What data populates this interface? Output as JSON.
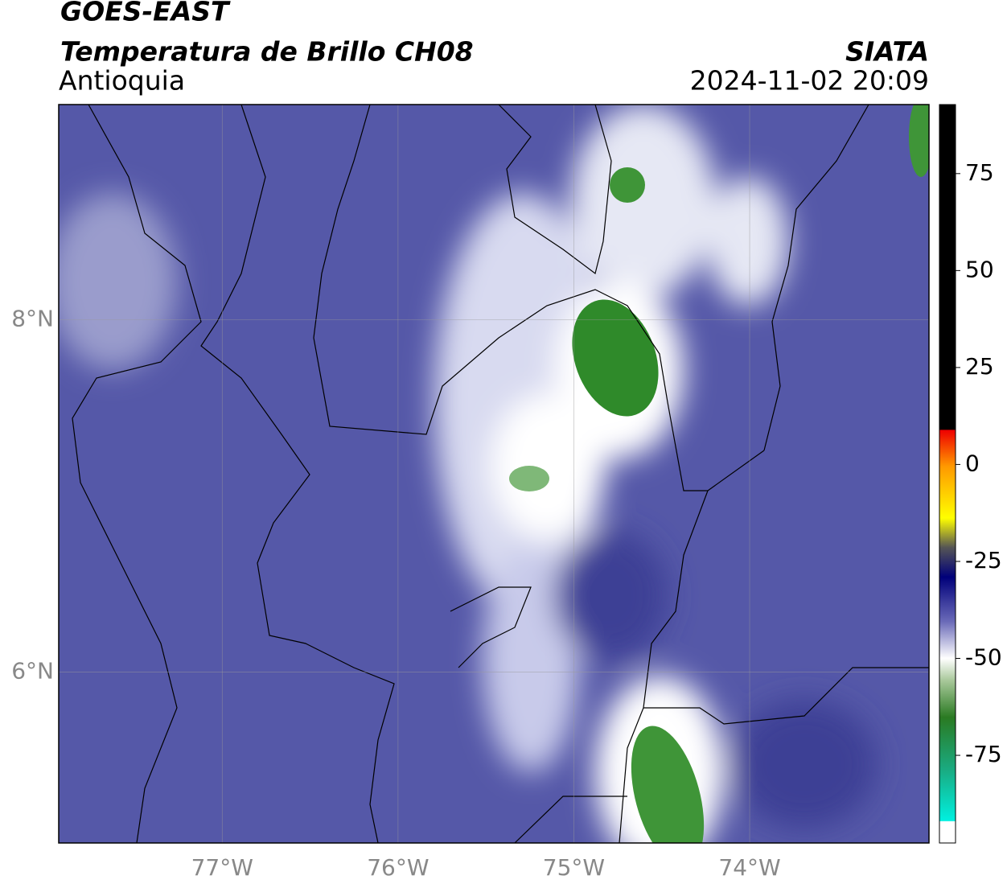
{
  "header": {
    "title": "GOES-EAST",
    "subtitle": "Temperatura de Brillo CH08",
    "region": "Antioquia",
    "source": "SIATA",
    "timestamp": "2024-11-02 20:09"
  },
  "map": {
    "xlim": [
      -77.93,
      -72.98
    ],
    "ylim": [
      5.03,
      9.22
    ],
    "xticks": [
      {
        "value": -77,
        "label": "77°W"
      },
      {
        "value": -76,
        "label": "76°W"
      },
      {
        "value": -75,
        "label": "75°W"
      },
      {
        "value": -74,
        "label": "74°W"
      }
    ],
    "yticks": [
      {
        "value": 8,
        "label": "8°N"
      },
      {
        "value": 6,
        "label": "6°N"
      }
    ],
    "grid": true
  },
  "colorbar": {
    "lim": [
      -97.6,
      92.8
    ],
    "ticks": [
      75,
      50,
      25,
      0,
      -25,
      -50,
      -75
    ]
  }
}
